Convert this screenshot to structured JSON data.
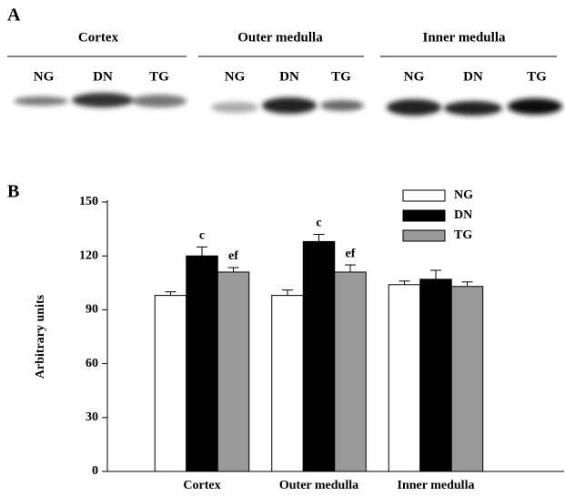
{
  "panel_a": {
    "label": "A",
    "groups": [
      {
        "name": "Cortex",
        "lanes": [
          "NG",
          "DN",
          "TG"
        ]
      },
      {
        "name": "Outer medulla",
        "lanes": [
          "NG",
          "DN",
          "TG"
        ]
      },
      {
        "name": "Inner medulla",
        "lanes": [
          "NG",
          "DN",
          "TG"
        ]
      }
    ]
  },
  "chart_data": {
    "type": "bar",
    "panel_label": "B",
    "y_label": "Arbitrary units",
    "categories": [
      "Cortex",
      "Outer medulla",
      "Inner medulla"
    ],
    "series": [
      {
        "name": "NG",
        "color": "#ffffff",
        "values": [
          98,
          98,
          104
        ],
        "errors": [
          2,
          3,
          2
        ],
        "sig": [
          null,
          null,
          null
        ]
      },
      {
        "name": "DN",
        "color": "#000000",
        "values": [
          120,
          128,
          107
        ],
        "errors": [
          5,
          4,
          5
        ],
        "sig": [
          "c",
          "c",
          null
        ]
      },
      {
        "name": "TG",
        "color": "#999999",
        "values": [
          111,
          111,
          103
        ],
        "errors": [
          2.5,
          4,
          2.5
        ],
        "sig": [
          "ef",
          "ef",
          null
        ]
      }
    ],
    "ylim": [
      0,
      150
    ],
    "yticks": [
      0,
      30,
      60,
      90,
      120,
      150
    ],
    "legend": "top-right"
  }
}
